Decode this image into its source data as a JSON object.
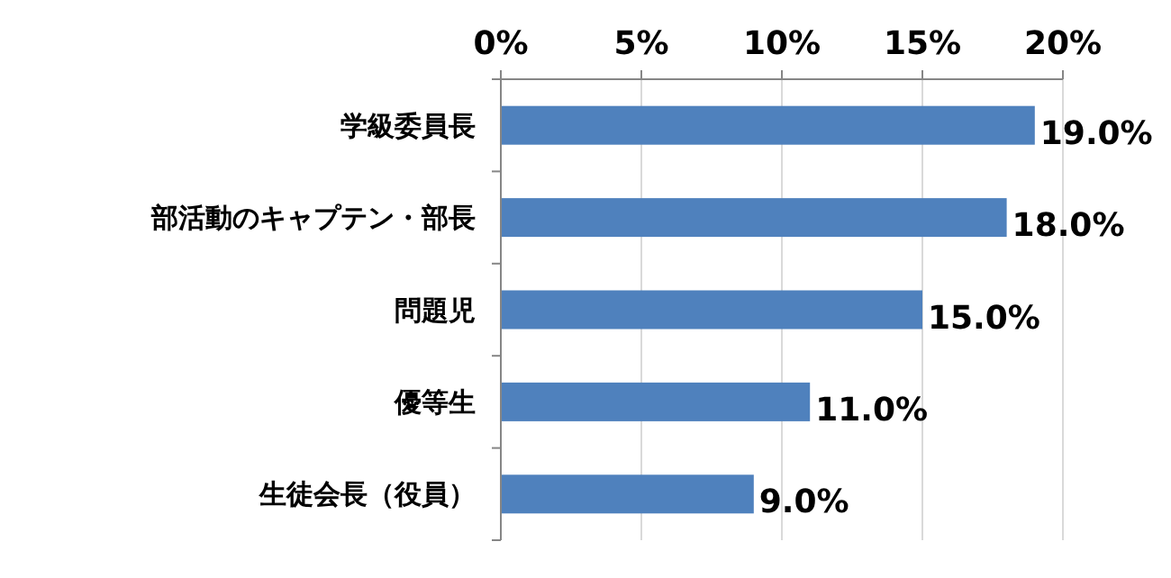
{
  "chart_data": {
    "type": "bar",
    "orientation": "horizontal",
    "categories": [
      "学級委員長",
      "部活動のキャプテン・部長",
      "問題児",
      "優等生",
      "生徒会長（役員）"
    ],
    "values": [
      19.0,
      18.0,
      15.0,
      11.0,
      9.0
    ],
    "value_labels": [
      "19.0%",
      "18.0%",
      "15.0%",
      "11.0%",
      "9.0%"
    ],
    "color": "#4f81bd",
    "xlim": [
      0,
      20
    ],
    "xticks": [
      {
        "value": 0,
        "label": "0%"
      },
      {
        "value": 5,
        "label": "5%"
      },
      {
        "value": 10,
        "label": "10%"
      },
      {
        "value": 15,
        "label": "15%"
      },
      {
        "value": 20,
        "label": "20%"
      }
    ],
    "grid": "x"
  }
}
